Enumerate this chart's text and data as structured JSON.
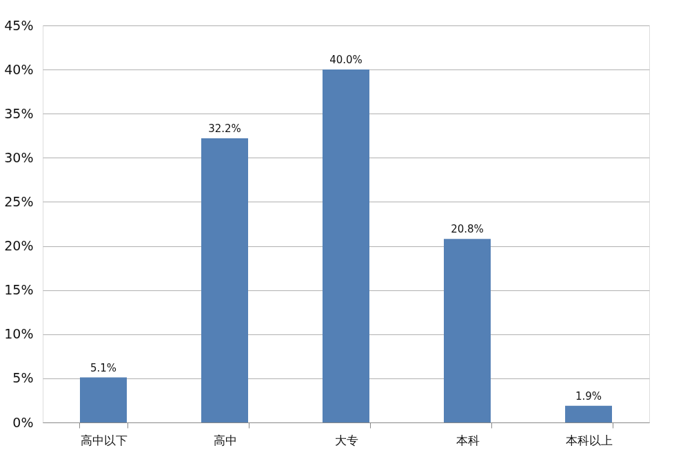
{
  "chart_data": {
    "type": "bar",
    "categories": [
      "高中以下",
      "高中",
      "大专",
      "本科",
      "本科以上"
    ],
    "values": [
      5.1,
      32.2,
      40.0,
      20.8,
      1.9
    ],
    "value_labels": [
      "5.1%",
      "32.2%",
      "40.0%",
      "20.8%",
      "1.9%"
    ],
    "color": "#5480b5",
    "ylim": [
      0,
      45
    ],
    "yticks": [
      {
        "value": 0,
        "label": "0%"
      },
      {
        "value": 5,
        "label": "5%"
      },
      {
        "value": 10,
        "label": "10%"
      },
      {
        "value": 15,
        "label": "15%"
      },
      {
        "value": 20,
        "label": "20%"
      },
      {
        "value": 25,
        "label": "25%"
      },
      {
        "value": 30,
        "label": "30%"
      },
      {
        "value": 35,
        "label": "35%"
      },
      {
        "value": 40,
        "label": "40%"
      },
      {
        "value": 45,
        "label": "45%"
      }
    ],
    "grid": "y"
  }
}
